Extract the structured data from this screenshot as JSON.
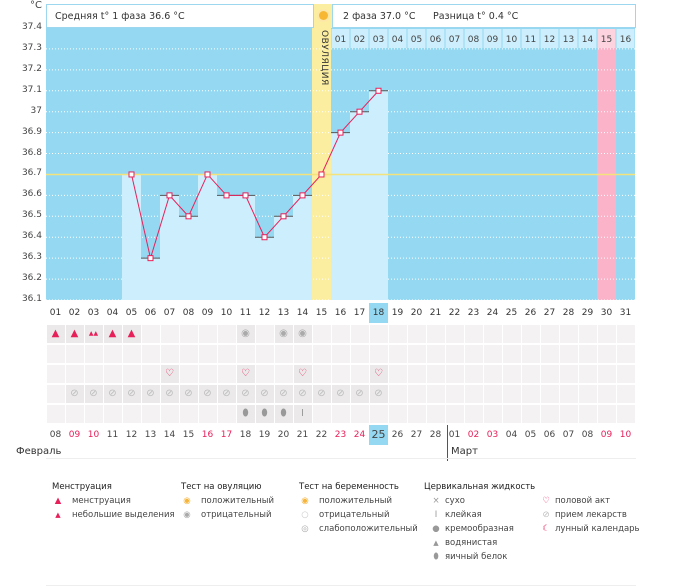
{
  "unit": "°C",
  "header": {
    "phase1": "Средняя t° 1 фаза 36.6 °C",
    "phase2": "2 фаза 37.0 °C",
    "diff": "Разница t° 0.4 °C",
    "ovulation": "ОВУЛЯЦИЯ"
  },
  "colors": {
    "bg": "#95d8f2",
    "bar": "#cdeefc",
    "line": "#e8205a",
    "coverline": "#f4e27a",
    "ovulation": "#fbeea0",
    "pink": "#fbb3c9",
    "today": "#95d8f2"
  },
  "chart_data": {
    "type": "bar",
    "title": "",
    "ylabel": "°C",
    "ylim": [
      36.1,
      37.4
    ],
    "yticks": [
      "37.4",
      "37.3",
      "37.2",
      "37.1",
      "37",
      "36.9",
      "36.8",
      "36.7",
      "36.6",
      "36.5",
      "36.4",
      "36.3",
      "36.2",
      "36.1"
    ],
    "categories": [
      "01",
      "02",
      "03",
      "04",
      "05",
      "06",
      "07",
      "08",
      "09",
      "10",
      "11",
      "12",
      "13",
      "14",
      "15",
      "16",
      "17",
      "18",
      "19",
      "20",
      "21",
      "22",
      "23",
      "24",
      "25",
      "26",
      "27",
      "28",
      "29",
      "30",
      "31"
    ],
    "values": [
      null,
      null,
      null,
      null,
      36.7,
      36.3,
      36.6,
      36.5,
      36.7,
      36.6,
      36.6,
      36.4,
      36.5,
      36.6,
      36.7,
      36.9,
      37.0,
      37.1,
      null,
      null,
      null,
      null,
      null,
      null,
      null,
      null,
      null,
      null,
      null,
      null,
      null
    ],
    "coverline": 36.7,
    "ovulation_day": 15,
    "phase2_days": [
      "01",
      "02",
      "03",
      "04",
      "05",
      "06",
      "07",
      "08",
      "09",
      "10",
      "11",
      "12",
      "13",
      "14",
      "15",
      "16"
    ],
    "expected_period_day": 30,
    "today_day": 18
  },
  "rows": {
    "menstruation": {
      "1": "small",
      "2": "small",
      "3": "heavy",
      "4": "small",
      "5": "small"
    },
    "ovulation_test": {
      "11": "neg",
      "13": "neg",
      "14": "neg"
    },
    "pregnancy_test": {},
    "intercourse": [
      7,
      11,
      14,
      18
    ],
    "medication": [
      2,
      3,
      4,
      5,
      6,
      7,
      8,
      9,
      10,
      11,
      12,
      13,
      14,
      15,
      16,
      17,
      18
    ],
    "cervical": {
      "11": "egg",
      "12": "egg",
      "13": "egg",
      "14": "sticky"
    }
  },
  "dates": [
    {
      "t": "08",
      "r": false
    },
    {
      "t": "09",
      "r": true
    },
    {
      "t": "10",
      "r": true
    },
    {
      "t": "11",
      "r": false
    },
    {
      "t": "12",
      "r": false
    },
    {
      "t": "13",
      "r": false
    },
    {
      "t": "14",
      "r": false
    },
    {
      "t": "15",
      "r": false
    },
    {
      "t": "16",
      "r": true
    },
    {
      "t": "17",
      "r": true
    },
    {
      "t": "18",
      "r": false
    },
    {
      "t": "19",
      "r": false
    },
    {
      "t": "20",
      "r": false
    },
    {
      "t": "21",
      "r": false
    },
    {
      "t": "22",
      "r": false
    },
    {
      "t": "23",
      "r": true
    },
    {
      "t": "24",
      "r": true
    },
    {
      "t": "25",
      "r": false
    },
    {
      "t": "26",
      "r": false
    },
    {
      "t": "27",
      "r": false
    },
    {
      "t": "28",
      "r": false
    },
    {
      "t": "01",
      "r": false
    },
    {
      "t": "02",
      "r": true
    },
    {
      "t": "03",
      "r": true
    },
    {
      "t": "04",
      "r": false
    },
    {
      "t": "05",
      "r": false
    },
    {
      "t": "06",
      "r": false
    },
    {
      "t": "07",
      "r": false
    },
    {
      "t": "08",
      "r": false
    },
    {
      "t": "09",
      "r": true
    },
    {
      "t": "10",
      "r": true
    }
  ],
  "months": {
    "feb": "Февраль",
    "mar": "Март"
  },
  "legend": {
    "menstruation": {
      "title": "Менструация",
      "items": [
        "менструация",
        "небольшие выделения"
      ]
    },
    "ovulation_test": {
      "title": "Тест на овуляцию",
      "items": [
        "положительный",
        "отрицательный"
      ]
    },
    "pregnancy_test": {
      "title": "Тест на беременность",
      "items": [
        "положительный",
        "отрицательный",
        "слабоположительный"
      ]
    },
    "cervical": {
      "title": "Цервикальная жидкость",
      "items": [
        "сухо",
        "клейкая",
        "кремообразная",
        "водянистая",
        "яичный белок"
      ]
    },
    "other": {
      "items": [
        "половой акт",
        "прием лекарств",
        "лунный календарь"
      ]
    }
  }
}
